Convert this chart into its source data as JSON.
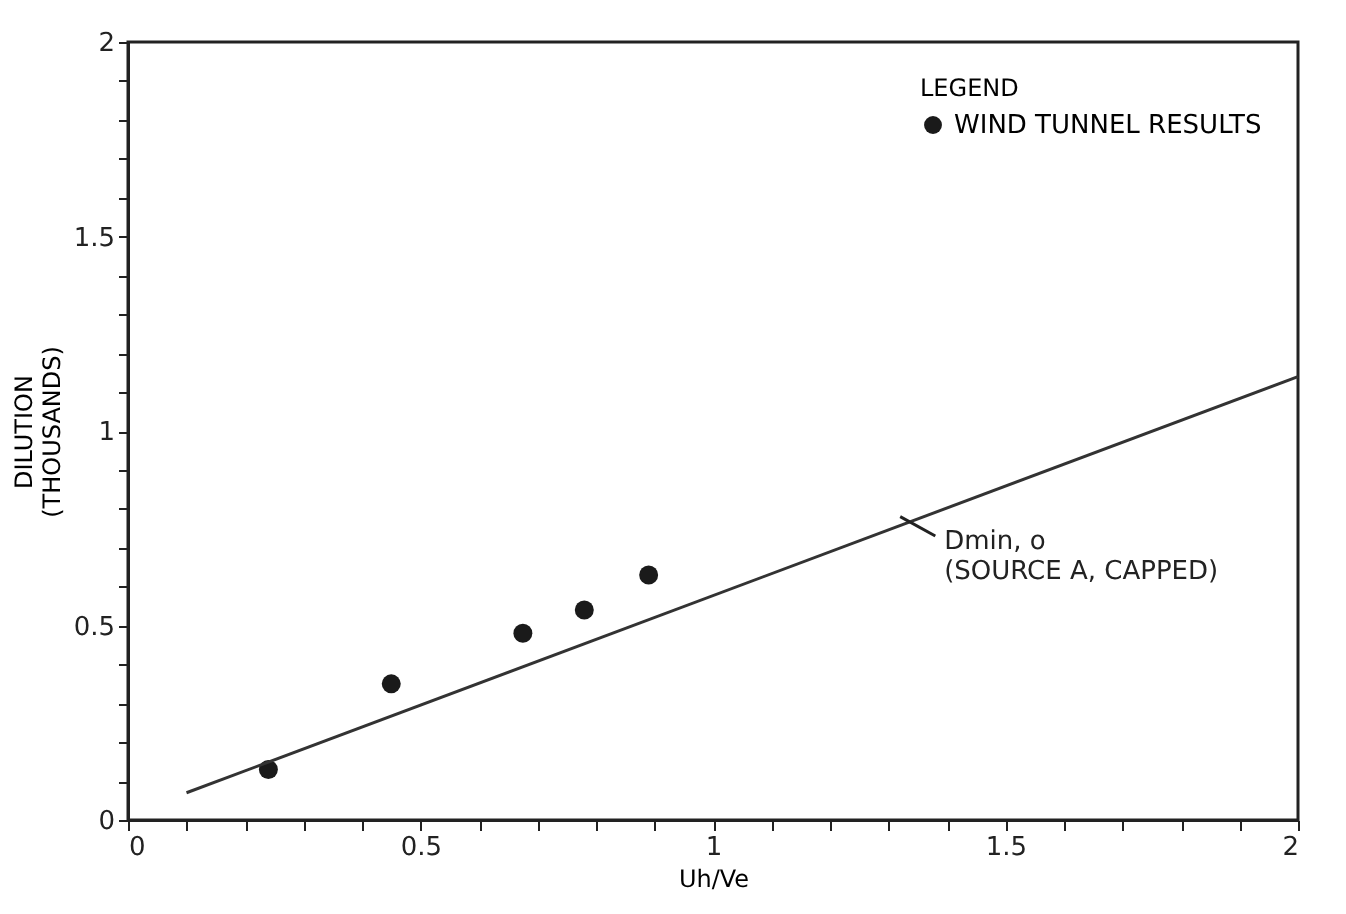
{
  "chart_data": {
    "type": "scatter",
    "xlabel": "Uh/Ve",
    "ylabel": "DILUTION\n(THOUSANDS)",
    "legend_title": "LEGEND",
    "legend": "top right",
    "grid": false,
    "marker": "circle",
    "xlim": [
      0,
      2
    ],
    "ylim": [
      0,
      2
    ],
    "xticks": [
      0,
      {
        "value": 0.1,
        "label": null
      },
      {
        "value": 0.2,
        "label": null
      },
      {
        "value": 0.3,
        "label": null
      },
      {
        "value": 0.4,
        "label": null
      },
      0.5,
      {
        "value": 0.6,
        "label": null
      },
      {
        "value": 0.7,
        "label": null
      },
      {
        "value": 0.8,
        "label": null
      },
      {
        "value": 0.9,
        "label": null
      },
      1,
      {
        "value": 1.1,
        "label": null
      },
      {
        "value": 1.2,
        "label": null
      },
      {
        "value": 1.3,
        "label": null
      },
      {
        "value": 1.4,
        "label": null
      },
      1.5,
      {
        "value": 1.6,
        "label": null
      },
      {
        "value": 1.7,
        "label": null
      },
      {
        "value": 1.8,
        "label": null
      },
      {
        "value": 1.9,
        "label": null
      },
      2
    ],
    "yticks": [
      0,
      {
        "value": 0.1,
        "label": null
      },
      {
        "value": 0.2,
        "label": null
      },
      {
        "value": 0.3,
        "label": null
      },
      {
        "value": 0.4,
        "label": null
      },
      0.5,
      {
        "value": 0.6,
        "label": null
      },
      {
        "value": 0.7,
        "label": null
      },
      {
        "value": 0.8,
        "label": null
      },
      {
        "value": 0.9,
        "label": null
      },
      1,
      {
        "value": 1.1,
        "label": null
      },
      {
        "value": 1.2,
        "label": null
      },
      {
        "value": 1.3,
        "label": null
      },
      {
        "value": 1.4,
        "label": null
      },
      1.5,
      {
        "value": 1.6,
        "label": null
      },
      {
        "value": 1.7,
        "label": null
      },
      {
        "value": 1.8,
        "label": null
      },
      {
        "value": 1.9,
        "label": null
      },
      2
    ],
    "series": [
      {
        "name": "WIND TUNNEL RESULTS",
        "color": "#1a1a1a",
        "x": [
          0.24,
          0.45,
          0.675,
          0.78,
          0.89
        ],
        "values": [
          0.13,
          0.35,
          0.48,
          0.54,
          0.63
        ]
      },
      {
        "type": "line",
        "color": "#333333",
        "marker": "none",
        "x": [
          0.1,
          2
        ],
        "values": [
          0.07,
          1.14
        ]
      }
    ],
    "annotations": [
      {
        "text": "Dmin, o\n(SOURCE A, CAPPED)",
        "x": 1.32,
        "y": 0.78
      }
    ]
  }
}
